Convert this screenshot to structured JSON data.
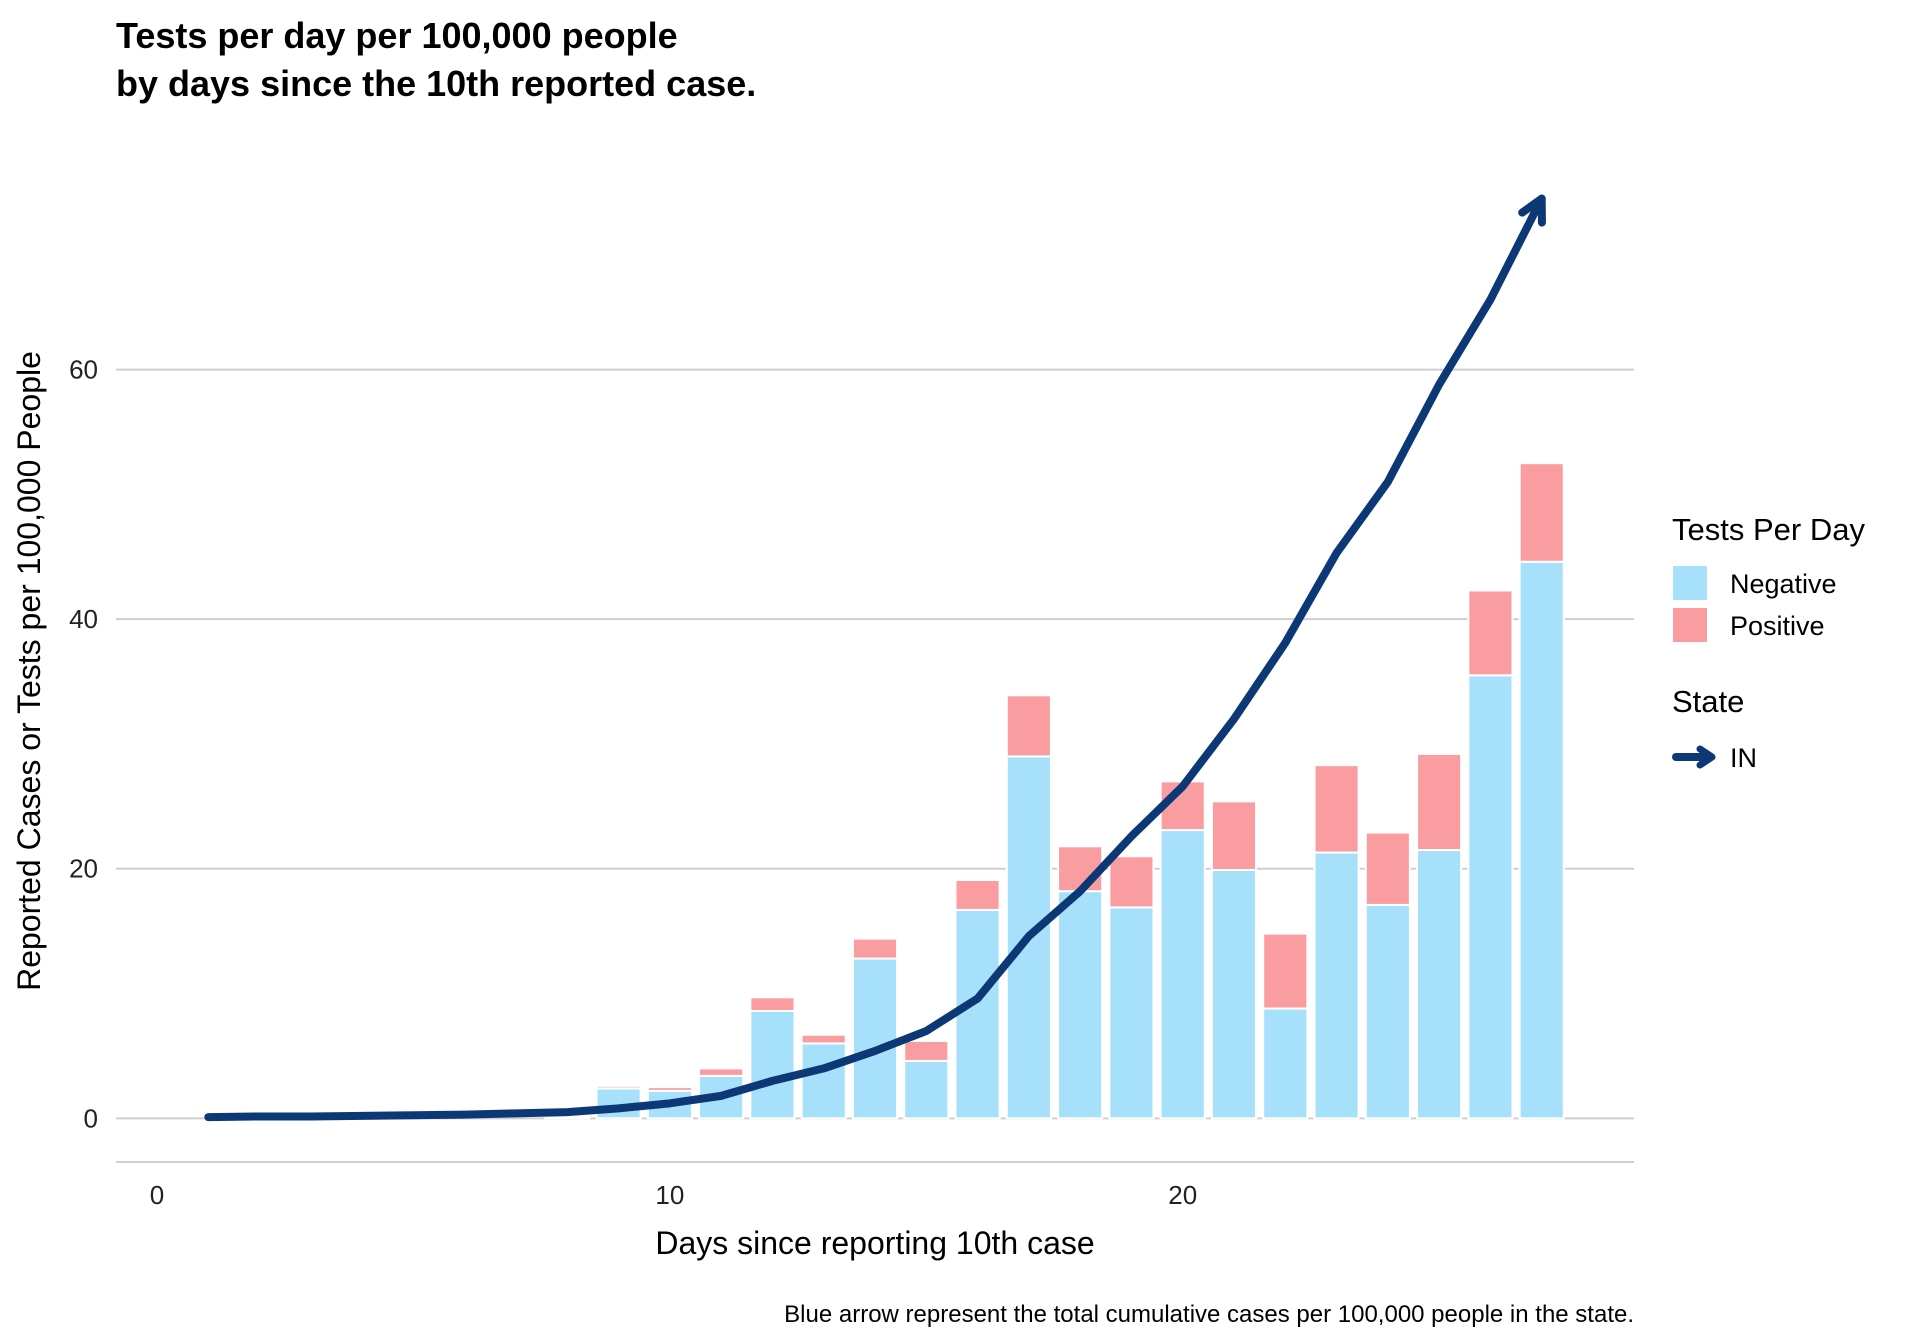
{
  "chart_data": {
    "type": "bar",
    "title_lines": [
      "Tests per day per 100,000 people",
      "by days since the 10th reported case."
    ],
    "xlabel": "Days since reporting 10th case",
    "ylabel": "Reported Cases or Tests per 100,000 People",
    "caption": "Blue arrow represent the total cumulative cases per 100,000 people in the state.",
    "xlim": [
      -0.8,
      28.8
    ],
    "ylim": [
      -3.5,
      80
    ],
    "x_ticks": [
      0,
      10,
      20
    ],
    "y_ticks": [
      0,
      20,
      40,
      60
    ],
    "grid": "horizontal major",
    "stacked": true,
    "x": [
      1,
      2,
      3,
      4,
      5,
      6,
      7,
      8,
      9,
      10,
      11,
      12,
      13,
      14,
      15,
      16,
      17,
      18,
      19,
      20,
      21,
      22,
      23,
      24,
      25,
      26,
      27
    ],
    "series": [
      {
        "name": "Negative",
        "color": "#a6e0fb",
        "values": [
          0,
          0,
          0,
          0,
          0,
          0,
          0,
          0.1,
          2.4,
          2.2,
          3.4,
          8.6,
          6.0,
          12.8,
          4.6,
          16.7,
          29.0,
          18.2,
          16.9,
          23.1,
          19.9,
          8.8,
          21.3,
          17.1,
          21.5,
          35.5,
          44.6
        ]
      },
      {
        "name": "Positive",
        "color": "#fa9da0",
        "values": [
          0,
          0,
          0,
          0,
          0,
          0,
          0,
          0,
          0.2,
          0.3,
          0.6,
          1.1,
          0.7,
          1.6,
          1.6,
          2.4,
          4.9,
          3.6,
          4.1,
          3.9,
          5.5,
          6.0,
          7.0,
          5.8,
          7.7,
          6.8,
          7.9
        ]
      }
    ],
    "line_series": {
      "name": "IN",
      "color": "#0d3876",
      "x": [
        1,
        2,
        3,
        4,
        5,
        6,
        7,
        8,
        9,
        10,
        11,
        12,
        13,
        14,
        15,
        16,
        17,
        18,
        19,
        20,
        21,
        22,
        23,
        24,
        25,
        26,
        27
      ],
      "values": [
        0.1,
        0.15,
        0.15,
        0.2,
        0.25,
        0.3,
        0.4,
        0.5,
        0.8,
        1.2,
        1.8,
        3.0,
        4.0,
        5.4,
        7.0,
        9.6,
        14.6,
        18.2,
        22.6,
        26.6,
        32.0,
        38.1,
        45.3,
        51.0,
        58.8,
        65.6,
        73.7
      ],
      "arrow_at_end": true
    },
    "legend": {
      "placement": "right",
      "groups": [
        {
          "title": "Tests Per Day",
          "items": [
            {
              "label": "Negative",
              "color": "#a6e0fb"
            },
            {
              "label": "Positive",
              "color": "#fa9da0"
            }
          ]
        },
        {
          "title": "State",
          "items": [
            {
              "label": "IN",
              "color": "#0d3876"
            }
          ]
        }
      ]
    }
  }
}
